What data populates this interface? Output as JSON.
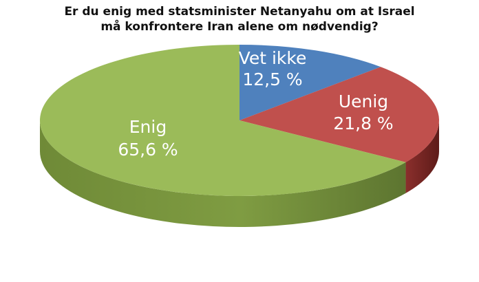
{
  "chart_data": {
    "type": "pie",
    "title_lines": [
      "Er du enig med statsminister Netanyahu om at Israel",
      "må konfrontere Iran alene om nødvendig?"
    ],
    "slices": [
      {
        "name": "Vet ikke",
        "value": 12.5,
        "value_label": "12,5 %",
        "color": "#4f81bd"
      },
      {
        "name": "Uenig",
        "value": 21.8,
        "value_label": "21,8 %",
        "color": "#c0504d"
      },
      {
        "name": "Enig",
        "value": 65.6,
        "value_label": "65,6 %",
        "color": "#9bbb59"
      }
    ]
  }
}
